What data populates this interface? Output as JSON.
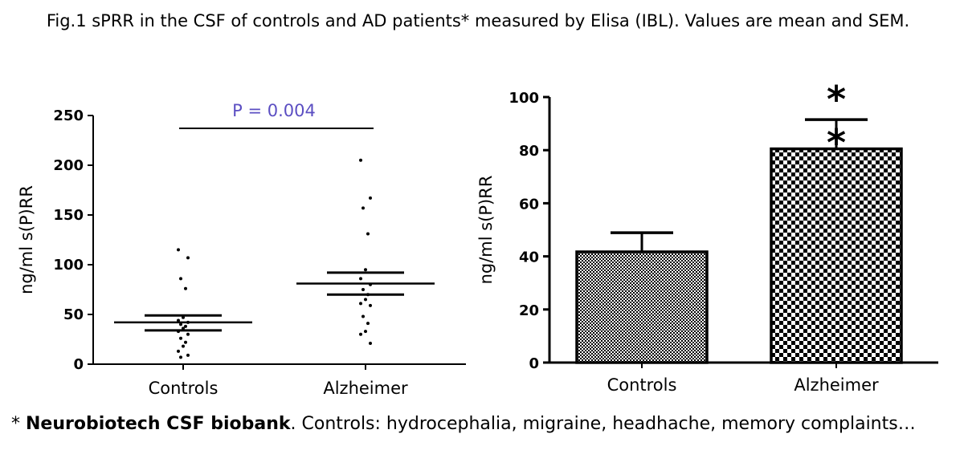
{
  "caption": "Fig.1 sPRR in the CSF of controls and AD patients* measured by Elisa (IBL). Values are mean and SEM.",
  "footnote": {
    "prefix": "* ",
    "bold": "Neurobiotech CSF biobank",
    "rest": ". Controls: hydrocephalia, migraine, headhache, memory complaints…"
  },
  "chart_data": [
    {
      "type": "scatter",
      "categories": [
        "Controls",
        "Alzheimer"
      ],
      "ylabel": "ng/ml s(P)RR",
      "ylim": [
        0,
        250
      ],
      "yticks": [
        0,
        50,
        100,
        150,
        200,
        250
      ],
      "series": [
        {
          "category": "Controls",
          "mean": 42,
          "sem_low": 34,
          "sem_high": 49,
          "points": [
            115,
            107,
            86,
            76,
            47,
            44,
            42,
            40,
            38,
            36,
            33,
            30,
            26,
            22,
            18,
            13,
            9,
            7
          ]
        },
        {
          "category": "Alzheimer",
          "mean": 81,
          "sem_low": 70,
          "sem_high": 92,
          "points": [
            205,
            167,
            157,
            131,
            95,
            86,
            80,
            75,
            70,
            65,
            61,
            59,
            48,
            41,
            33,
            30,
            21
          ]
        }
      ],
      "annotation": {
        "text": "P = 0.004",
        "color": "#5b4ec2"
      }
    },
    {
      "type": "bar",
      "categories": [
        "Controls",
        "Alzheimer"
      ],
      "values": [
        41.7,
        80.5
      ],
      "error": [
        7.2,
        11.0
      ],
      "ylabel": "ng/ml s(P)RR",
      "ylim": [
        0,
        100
      ],
      "yticks": [
        0,
        20,
        40,
        60,
        80,
        100
      ],
      "significance": [
        "",
        "**"
      ]
    }
  ]
}
